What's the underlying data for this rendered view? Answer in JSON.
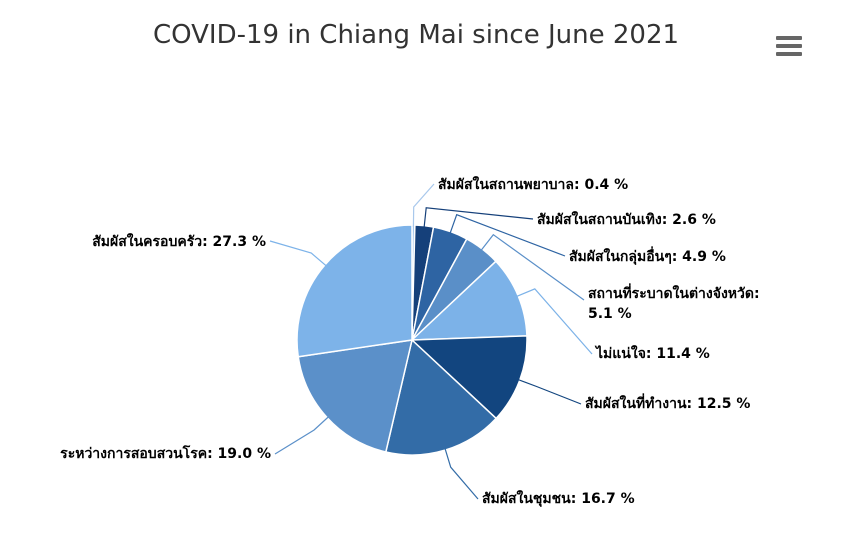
{
  "chart_data": {
    "type": "pie",
    "title": "COVID-19 in Chiang Mai since June 2021",
    "unit": "%",
    "slices": [
      {
        "label": "สัมผัสในสถานพยาบาล",
        "value": 0.4,
        "display": "สัมผัสในสถานพยาบาล: 0.4 %",
        "color": "#a8c8ec"
      },
      {
        "label": "สัมผัสในสถานบันเทิง",
        "value": 2.6,
        "display": "สัมผัสในสถานบันเทิง: 2.6 %",
        "color": "#15407a"
      },
      {
        "label": "สัมผัสในกลุ่มอื่นๆ",
        "value": 4.9,
        "display": "สัมผัสในกลุ่มอื่นๆ: 4.9 %",
        "color": "#2e64a3"
      },
      {
        "label": "สถานที่ระบาดในต่างจังหวัด",
        "value": 5.1,
        "display_lines": [
          "สถานที่ระบาดในต่างจังหวัด:",
          "5.1 %"
        ],
        "color": "#5a8fc8"
      },
      {
        "label": "ไม่แน่ใจ",
        "value": 11.4,
        "display": "ไม่แน่ใจ: 11.4 %",
        "color": "#7cb2e8"
      },
      {
        "label": "สัมผัสในที่ทำงาน",
        "value": 12.5,
        "display": "สัมผัสในที่ทำงาน: 12.5 %",
        "color": "#12457f"
      },
      {
        "label": "สัมผัสในชุมชน",
        "value": 16.7,
        "display": "สัมผัสในชุมชน: 16.7 %",
        "color": "#336ca7"
      },
      {
        "label": "ระหว่างการสอบสวนโรค",
        "value": 19.0,
        "display": "ระหว่างการสอบสวนโรค: 19.0 %",
        "color": "#5b90c9"
      },
      {
        "label": "สัมผัสในครอบครัว",
        "value": 27.3,
        "display": "สัมผัสในครอบครัว: 27.3 %",
        "color": "#7db3e9"
      }
    ]
  },
  "menu": {
    "icon": "hamburger-menu-icon"
  }
}
